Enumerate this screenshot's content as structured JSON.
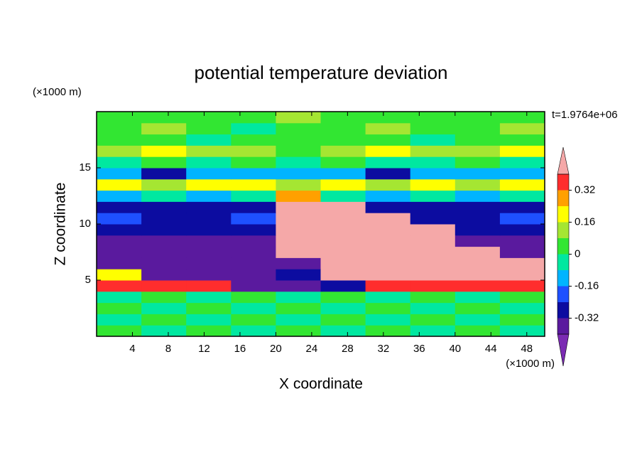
{
  "chart_data": {
    "type": "contour",
    "title": "potential temperature deviation",
    "x_label": "X coordinate",
    "y_label": "Z coordinate",
    "x_unit": "(×1000 m)",
    "y_unit": "(×1000 m)",
    "time_label": "t=1.9764e+06",
    "xlim": [
      0,
      50
    ],
    "ylim": [
      0,
      20
    ],
    "xticks": [
      4,
      8,
      12,
      16,
      20,
      24,
      28,
      32,
      36,
      40,
      44,
      48
    ],
    "yticks": [
      5,
      10,
      15
    ],
    "levels": [
      -0.4,
      -0.32,
      -0.24,
      -0.16,
      -0.08,
      0,
      0.08,
      0.16,
      0.24,
      0.32,
      0.4
    ],
    "colors": [
      "#7b2bb3",
      "#5a1a9e",
      "#0c0ca0",
      "#1e50ff",
      "#00b4ff",
      "#00e8a0",
      "#32e632",
      "#a5e632",
      "#ffff00",
      "#ffa000",
      "#ff2d2d",
      "#f5a8a8"
    ],
    "colorbar_ticks": [
      -0.32,
      -0.16,
      0,
      0.16,
      0.32
    ],
    "field": [
      [
        0.04,
        -0.04,
        0.04,
        -0.04,
        0.04,
        -0.04,
        0.04,
        -0.04,
        0.04,
        -0.04
      ],
      [
        -0.04,
        0.04,
        -0.04,
        0.04,
        -0.04,
        0.04,
        -0.04,
        0.04,
        -0.04,
        0.04
      ],
      [
        0.04,
        -0.04,
        0.04,
        -0.04,
        0.04,
        -0.04,
        0.04,
        -0.04,
        0.04,
        -0.04
      ],
      [
        -0.04,
        0.04,
        -0.04,
        0.04,
        -0.04,
        0.04,
        -0.04,
        0.04,
        -0.04,
        0.04
      ],
      [
        0.36,
        0.36,
        0.36,
        -0.36,
        -0.36,
        -0.28,
        0.36,
        0.36,
        0.36,
        0.36
      ],
      [
        0.2,
        -0.36,
        -0.36,
        -0.36,
        -0.28,
        0.44,
        0.44,
        0.44,
        0.44,
        0.44
      ],
      [
        -0.36,
        -0.36,
        -0.36,
        -0.36,
        -0.36,
        0.44,
        0.44,
        0.44,
        0.44,
        0.44
      ],
      [
        -0.36,
        -0.36,
        -0.36,
        -0.36,
        0.44,
        0.44,
        0.44,
        0.44,
        0.44,
        -0.36
      ],
      [
        -0.36,
        -0.36,
        -0.36,
        -0.36,
        0.44,
        0.44,
        0.44,
        0.44,
        -0.36,
        -0.36
      ],
      [
        -0.28,
        -0.28,
        -0.28,
        -0.28,
        0.44,
        0.44,
        0.44,
        0.44,
        -0.28,
        -0.28
      ],
      [
        -0.2,
        -0.28,
        -0.28,
        -0.2,
        0.44,
        0.44,
        0.44,
        -0.28,
        -0.28,
        -0.2
      ],
      [
        -0.28,
        -0.28,
        -0.28,
        -0.28,
        0.44,
        0.44,
        -0.28,
        -0.28,
        -0.28,
        -0.28
      ],
      [
        -0.12,
        -0.04,
        -0.12,
        -0.04,
        0.28,
        -0.04,
        -0.12,
        -0.04,
        -0.12,
        -0.04
      ],
      [
        0.2,
        0.12,
        0.2,
        0.2,
        0.12,
        0.2,
        0.12,
        0.2,
        0.12,
        0.2
      ],
      [
        -0.12,
        -0.28,
        -0.12,
        -0.12,
        -0.12,
        -0.12,
        -0.28,
        -0.12,
        -0.12,
        -0.12
      ],
      [
        -0.04,
        0.04,
        -0.04,
        0.04,
        -0.04,
        0.04,
        -0.04,
        -0.04,
        0.04,
        -0.04
      ],
      [
        0.12,
        0.2,
        0.12,
        0.12,
        0.04,
        0.12,
        0.2,
        0.12,
        0.12,
        0.2
      ],
      [
        0.04,
        0.04,
        -0.04,
        0.04,
        0.04,
        0.04,
        0.04,
        -0.04,
        0.04,
        0.04
      ],
      [
        0.04,
        0.12,
        0.04,
        -0.04,
        0.04,
        0.04,
        0.12,
        0.04,
        0.04,
        0.12
      ],
      [
        0.04,
        0.04,
        0.04,
        0.04,
        0.12,
        0.04,
        0.04,
        0.04,
        0.04,
        0.04
      ]
    ]
  }
}
